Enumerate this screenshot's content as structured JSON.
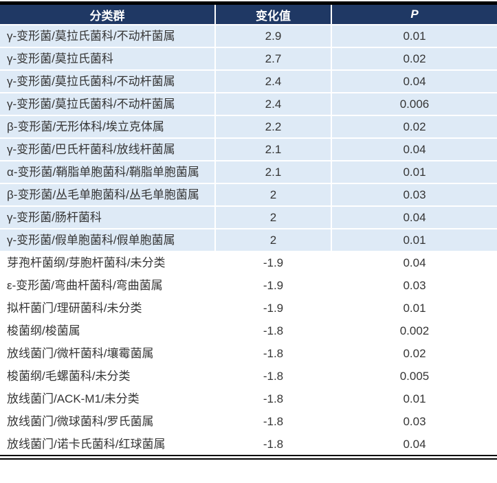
{
  "table": {
    "columns": [
      {
        "label": "分类群"
      },
      {
        "label": "变化值"
      },
      {
        "label": "P",
        "italic": true
      }
    ],
    "rows": [
      {
        "taxon": "γ-变形菌/莫拉氏菌科/不动杆菌属",
        "change": "2.9",
        "p": "0.01",
        "highlight": true
      },
      {
        "taxon": "γ-变形菌/莫拉氏菌科",
        "change": "2.7",
        "p": "0.02",
        "highlight": true
      },
      {
        "taxon": "γ-变形菌/莫拉氏菌科/不动杆菌属",
        "change": "2.4",
        "p": "0.04",
        "highlight": true
      },
      {
        "taxon": "γ-变形菌/莫拉氏菌科/不动杆菌属",
        "change": "2.4",
        "p": "0.006",
        "highlight": true
      },
      {
        "taxon": "β-变形菌/无形体科/埃立克体属",
        "change": "2.2",
        "p": "0.02",
        "highlight": true
      },
      {
        "taxon": "γ-变形菌/巴氏杆菌科/放线杆菌属",
        "change": "2.1",
        "p": "0.04",
        "highlight": true
      },
      {
        "taxon": "α-变形菌/鞘脂单胞菌科/鞘脂单胞菌属",
        "change": "2.1",
        "p": "0.01",
        "highlight": true
      },
      {
        "taxon": "β-变形菌/丛毛单胞菌科/丛毛单胞菌属",
        "change": "2",
        "p": "0.03",
        "highlight": true
      },
      {
        "taxon": "γ-变形菌/肠杆菌科",
        "change": "2",
        "p": "0.04",
        "highlight": true
      },
      {
        "taxon": "γ-变形菌/假单胞菌科/假单胞菌属",
        "change": "2",
        "p": "0.01",
        "highlight": true
      },
      {
        "taxon": "芽孢杆菌纲/芽胞杆菌科/未分类",
        "change": "-1.9",
        "p": "0.04",
        "highlight": false
      },
      {
        "taxon": "ε-变形菌/弯曲杆菌科/弯曲菌属",
        "change": "-1.9",
        "p": "0.03",
        "highlight": false
      },
      {
        "taxon": "拟杆菌门/理研菌科/未分类",
        "change": "-1.9",
        "p": "0.01",
        "highlight": false
      },
      {
        "taxon": "梭菌纲/梭菌属",
        "change": "-1.8",
        "p": "0.002",
        "highlight": false
      },
      {
        "taxon": "放线菌门/微杆菌科/壤霉菌属",
        "change": "-1.8",
        "p": "0.02",
        "highlight": false
      },
      {
        "taxon": "梭菌纲/毛螺菌科/未分类",
        "change": "-1.8",
        "p": "0.005",
        "highlight": false
      },
      {
        "taxon": "放线菌门/ACK-M1/未分类",
        "change": "-1.8",
        "p": "0.01",
        "highlight": false
      },
      {
        "taxon": "放线菌门/微球菌科/罗氏菌属",
        "change": "-1.8",
        "p": "0.03",
        "highlight": false
      },
      {
        "taxon": "放线菌门/诺卡氏菌科/红球菌属",
        "change": "-1.8",
        "p": "0.04",
        "highlight": false
      }
    ]
  },
  "colors": {
    "header_bg": "#1F3864",
    "header_text": "#FFFFFF",
    "row_highlight_bg": "#DEEAF6",
    "row_plain_bg": "#FFFFFF",
    "body_text": "#353535",
    "rule": "#000000"
  },
  "chart_data": {
    "type": "table",
    "title": "",
    "columns": [
      "分类群",
      "变化值",
      "P"
    ],
    "rows": [
      [
        "γ-变形菌/莫拉氏菌科/不动杆菌属",
        2.9,
        0.01
      ],
      [
        "γ-变形菌/莫拉氏菌科",
        2.7,
        0.02
      ],
      [
        "γ-变形菌/莫拉氏菌科/不动杆菌属",
        2.4,
        0.04
      ],
      [
        "γ-变形菌/莫拉氏菌科/不动杆菌属",
        2.4,
        0.006
      ],
      [
        "β-变形菌/无形体科/埃立克体属",
        2.2,
        0.02
      ],
      [
        "γ-变形菌/巴氏杆菌科/放线杆菌属",
        2.1,
        0.04
      ],
      [
        "α-变形菌/鞘脂单胞菌科/鞘脂单胞菌属",
        2.1,
        0.01
      ],
      [
        "β-变形菌/丛毛单胞菌科/丛毛单胞菌属",
        2,
        0.03
      ],
      [
        "γ-变形菌/肠杆菌科",
        2,
        0.04
      ],
      [
        "γ-变形菌/假单胞菌科/假单胞菌属",
        2,
        0.01
      ],
      [
        "芽孢杆菌纲/芽胞杆菌科/未分类",
        -1.9,
        0.04
      ],
      [
        "ε-变形菌/弯曲杆菌科/弯曲菌属",
        -1.9,
        0.03
      ],
      [
        "拟杆菌门/理研菌科/未分类",
        -1.9,
        0.01
      ],
      [
        "梭菌纲/梭菌属",
        -1.8,
        0.002
      ],
      [
        "放线菌门/微杆菌科/壤霉菌属",
        -1.8,
        0.02
      ],
      [
        "梭菌纲/毛螺菌科/未分类",
        -1.8,
        0.005
      ],
      [
        "放线菌门/ACK-M1/未分类",
        -1.8,
        0.01
      ],
      [
        "放线菌门/微球菌科/罗氏菌属",
        -1.8,
        0.03
      ],
      [
        "放线菌门/诺卡氏菌科/红球菌属",
        -1.8,
        0.04
      ]
    ],
    "layout_hints": {
      "highlighted_rows": "rows with positive change values have light blue background",
      "top_rule": "thick black",
      "bottom_rule": "double black line"
    }
  }
}
